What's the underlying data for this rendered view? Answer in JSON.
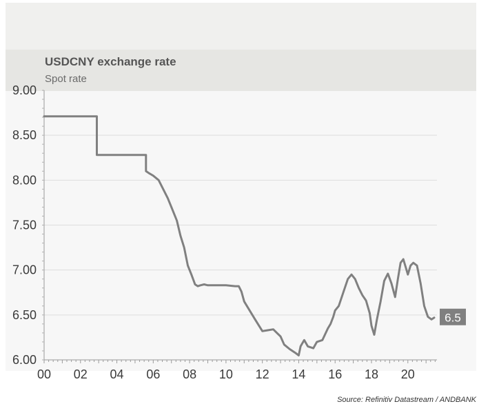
{
  "header": {
    "title": "USDCNY exchange rate",
    "subtitle": "Spot rate"
  },
  "source": "Source: Refinitiv Datastream / ANDBANK",
  "colors": {
    "line": "#808080",
    "plot_background": "#f7f7f7",
    "grid": "#dddddd",
    "label_box": "#808080",
    "label_text": "#ffffff"
  },
  "chart_data": {
    "type": "line",
    "title": "USDCNY exchange rate",
    "subtitle": "Spot rate",
    "xlabel": "",
    "ylabel": "",
    "xlim": [
      2000,
      2021.6
    ],
    "ylim": [
      6.0,
      9.0
    ],
    "x_ticks": [
      "00",
      "02",
      "04",
      "06",
      "08",
      "10",
      "12",
      "14",
      "16",
      "18",
      "20"
    ],
    "y_ticks": [
      "6.00",
      "6.50",
      "7.00",
      "7.50",
      "8.00",
      "8.50",
      "9.00"
    ],
    "grid": true,
    "last_value_label": "6.5",
    "series": [
      {
        "name": "",
        "x": [
          2000.0,
          2002.9,
          2002.9,
          2005.6,
          2005.6,
          2005.75,
          2006.0,
          2006.3,
          2006.5,
          2006.8,
          2007.0,
          2007.3,
          2007.5,
          2007.7,
          2007.9,
          2008.1,
          2008.3,
          2008.45,
          2008.6,
          2008.8,
          2009.0,
          2009.5,
          2010.0,
          2010.5,
          2010.7,
          2010.85,
          2011.0,
          2011.3,
          2011.6,
          2012.0,
          2012.3,
          2012.6,
          2012.8,
          2013.0,
          2013.2,
          2013.5,
          2013.8,
          2014.0,
          2014.1,
          2014.3,
          2014.5,
          2014.8,
          2015.0,
          2015.3,
          2015.6,
          2015.75,
          2015.9,
          2016.0,
          2016.2,
          2016.5,
          2016.7,
          2016.9,
          2017.1,
          2017.3,
          2017.5,
          2017.7,
          2017.9,
          2018.0,
          2018.15,
          2018.3,
          2018.5,
          2018.7,
          2018.9,
          2019.1,
          2019.3,
          2019.45,
          2019.6,
          2019.75,
          2019.9,
          2020.0,
          2020.15,
          2020.3,
          2020.5,
          2020.7,
          2020.9,
          2021.1,
          2021.3,
          2021.45
        ],
        "values": [
          8.71,
          8.71,
          8.28,
          8.28,
          8.1,
          8.08,
          8.05,
          8.0,
          7.92,
          7.8,
          7.7,
          7.55,
          7.38,
          7.25,
          7.05,
          6.95,
          6.84,
          6.82,
          6.83,
          6.84,
          6.83,
          6.83,
          6.83,
          6.82,
          6.82,
          6.76,
          6.65,
          6.55,
          6.45,
          6.32,
          6.33,
          6.34,
          6.3,
          6.26,
          6.17,
          6.12,
          6.08,
          6.05,
          6.15,
          6.22,
          6.15,
          6.13,
          6.2,
          6.22,
          6.35,
          6.4,
          6.48,
          6.55,
          6.6,
          6.78,
          6.9,
          6.95,
          6.9,
          6.8,
          6.72,
          6.66,
          6.52,
          6.38,
          6.28,
          6.45,
          6.65,
          6.88,
          6.96,
          6.85,
          6.7,
          6.9,
          7.08,
          7.12,
          7.02,
          6.95,
          7.05,
          7.08,
          7.05,
          6.85,
          6.6,
          6.48,
          6.45,
          6.47
        ]
      }
    ]
  }
}
